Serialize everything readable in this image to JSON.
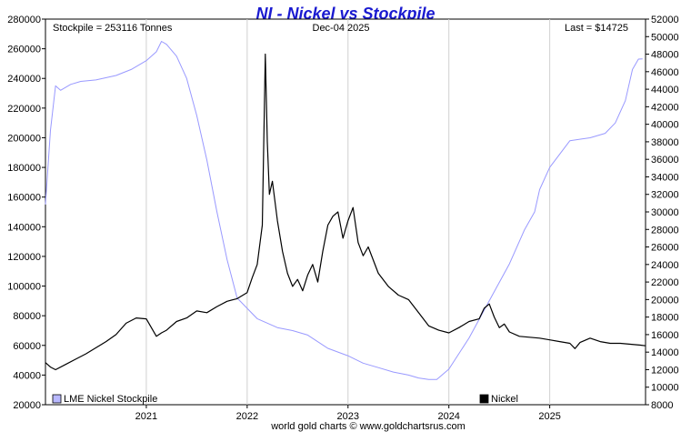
{
  "chart_data": {
    "type": "line",
    "title": "NI - Nickel vs Stockpile",
    "header_left": "Stockpile = 253116 Tonnes",
    "header_center": "Dec-04  2025",
    "header_right": "Last = $14725",
    "footer": "world gold charts © www.goldchartsrus.com",
    "x_axis": {
      "start_year": 2020.0,
      "end_year": 2025.95,
      "tick_labels": [
        "2021",
        "2022",
        "2023",
        "2024",
        "2025"
      ],
      "tick_values": [
        2021,
        2022,
        2023,
        2024,
        2025
      ]
    },
    "y_left": {
      "label": "",
      "min": 20000,
      "max": 280000,
      "ticks": [
        20000,
        40000,
        60000,
        80000,
        100000,
        120000,
        140000,
        160000,
        180000,
        200000,
        220000,
        240000,
        260000,
        280000
      ]
    },
    "y_right": {
      "label": "",
      "min": 8000,
      "max": 52000,
      "ticks": [
        8000,
        10000,
        12000,
        14000,
        16000,
        18000,
        20000,
        22000,
        24000,
        26000,
        28000,
        30000,
        32000,
        34000,
        36000,
        38000,
        40000,
        42000,
        44000,
        46000,
        48000,
        50000,
        52000
      ]
    },
    "grid": "vertical",
    "legend_position": "bottom",
    "series": [
      {
        "name": "LME Nickel Stockpile",
        "axis": "left",
        "color": "#9999ff",
        "legend_swatch": "#b8b8ff",
        "x": [
          2020.0,
          2020.05,
          2020.1,
          2020.15,
          2020.25,
          2020.35,
          2020.5,
          2020.7,
          2020.85,
          2021.0,
          2021.1,
          2021.15,
          2021.2,
          2021.3,
          2021.4,
          2021.5,
          2021.6,
          2021.7,
          2021.8,
          2021.9,
          2022.0,
          2022.1,
          2022.2,
          2022.3,
          2022.45,
          2022.6,
          2022.8,
          2023.0,
          2023.15,
          2023.3,
          2023.45,
          2023.6,
          2023.7,
          2023.8,
          2023.88,
          2024.0,
          2024.2,
          2024.4,
          2024.6,
          2024.75,
          2024.85,
          2024.9,
          2025.0,
          2025.2,
          2025.4,
          2025.55,
          2025.65,
          2025.75,
          2025.82,
          2025.88,
          2025.92
        ],
        "values": [
          155000,
          205000,
          235000,
          232000,
          236000,
          238000,
          239000,
          242000,
          246000,
          252000,
          258000,
          265000,
          263000,
          255000,
          240000,
          215000,
          185000,
          150000,
          118000,
          92000,
          85000,
          78000,
          75000,
          72000,
          70000,
          67000,
          58000,
          53000,
          48000,
          45000,
          42000,
          40000,
          38000,
          37000,
          37000,
          44000,
          65000,
          90000,
          115000,
          138000,
          150000,
          165000,
          180000,
          198000,
          200000,
          203000,
          210000,
          225000,
          246000,
          253000,
          253116
        ]
      },
      {
        "name": "Nickel",
        "axis": "right",
        "color": "#000000",
        "legend_swatch": "#000000",
        "x": [
          2020.0,
          2020.05,
          2020.1,
          2020.2,
          2020.3,
          2020.4,
          2020.5,
          2020.6,
          2020.7,
          2020.8,
          2020.9,
          2021.0,
          2021.1,
          2021.15,
          2021.2,
          2021.3,
          2021.4,
          2021.5,
          2021.6,
          2021.7,
          2021.8,
          2021.9,
          2022.0,
          2022.05,
          2022.1,
          2022.15,
          2022.18,
          2022.2,
          2022.22,
          2022.25,
          2022.3,
          2022.35,
          2022.4,
          2022.45,
          2022.5,
          2022.55,
          2022.6,
          2022.65,
          2022.7,
          2022.75,
          2022.8,
          2022.85,
          2022.9,
          2022.95,
          2023.0,
          2023.05,
          2023.1,
          2023.15,
          2023.2,
          2023.3,
          2023.4,
          2023.5,
          2023.6,
          2023.7,
          2023.8,
          2023.9,
          2024.0,
          2024.1,
          2024.2,
          2024.3,
          2024.35,
          2024.4,
          2024.45,
          2024.5,
          2024.55,
          2024.6,
          2024.7,
          2024.8,
          2024.9,
          2025.0,
          2025.1,
          2025.2,
          2025.25,
          2025.3,
          2025.4,
          2025.5,
          2025.6,
          2025.7,
          2025.8,
          2025.9,
          2025.95
        ],
        "values": [
          12800,
          12300,
          12000,
          12600,
          13200,
          13800,
          14500,
          15200,
          16000,
          17300,
          17900,
          17800,
          15800,
          16200,
          16500,
          17500,
          17900,
          18700,
          18500,
          19200,
          19800,
          20100,
          20800,
          22500,
          24000,
          28500,
          48000,
          38000,
          32000,
          33500,
          29000,
          25500,
          23000,
          21500,
          22300,
          21000,
          22800,
          24000,
          22000,
          25500,
          28500,
          29500,
          30000,
          27000,
          29000,
          30500,
          26500,
          25000,
          26000,
          23000,
          21500,
          20500,
          20000,
          18500,
          17000,
          16500,
          16200,
          16800,
          17500,
          17800,
          19000,
          19500,
          18000,
          16800,
          17200,
          16300,
          15800,
          15700,
          15600,
          15400,
          15200,
          15000,
          14400,
          15100,
          15600,
          15200,
          15000,
          15000,
          14900,
          14800,
          14725
        ]
      }
    ]
  }
}
